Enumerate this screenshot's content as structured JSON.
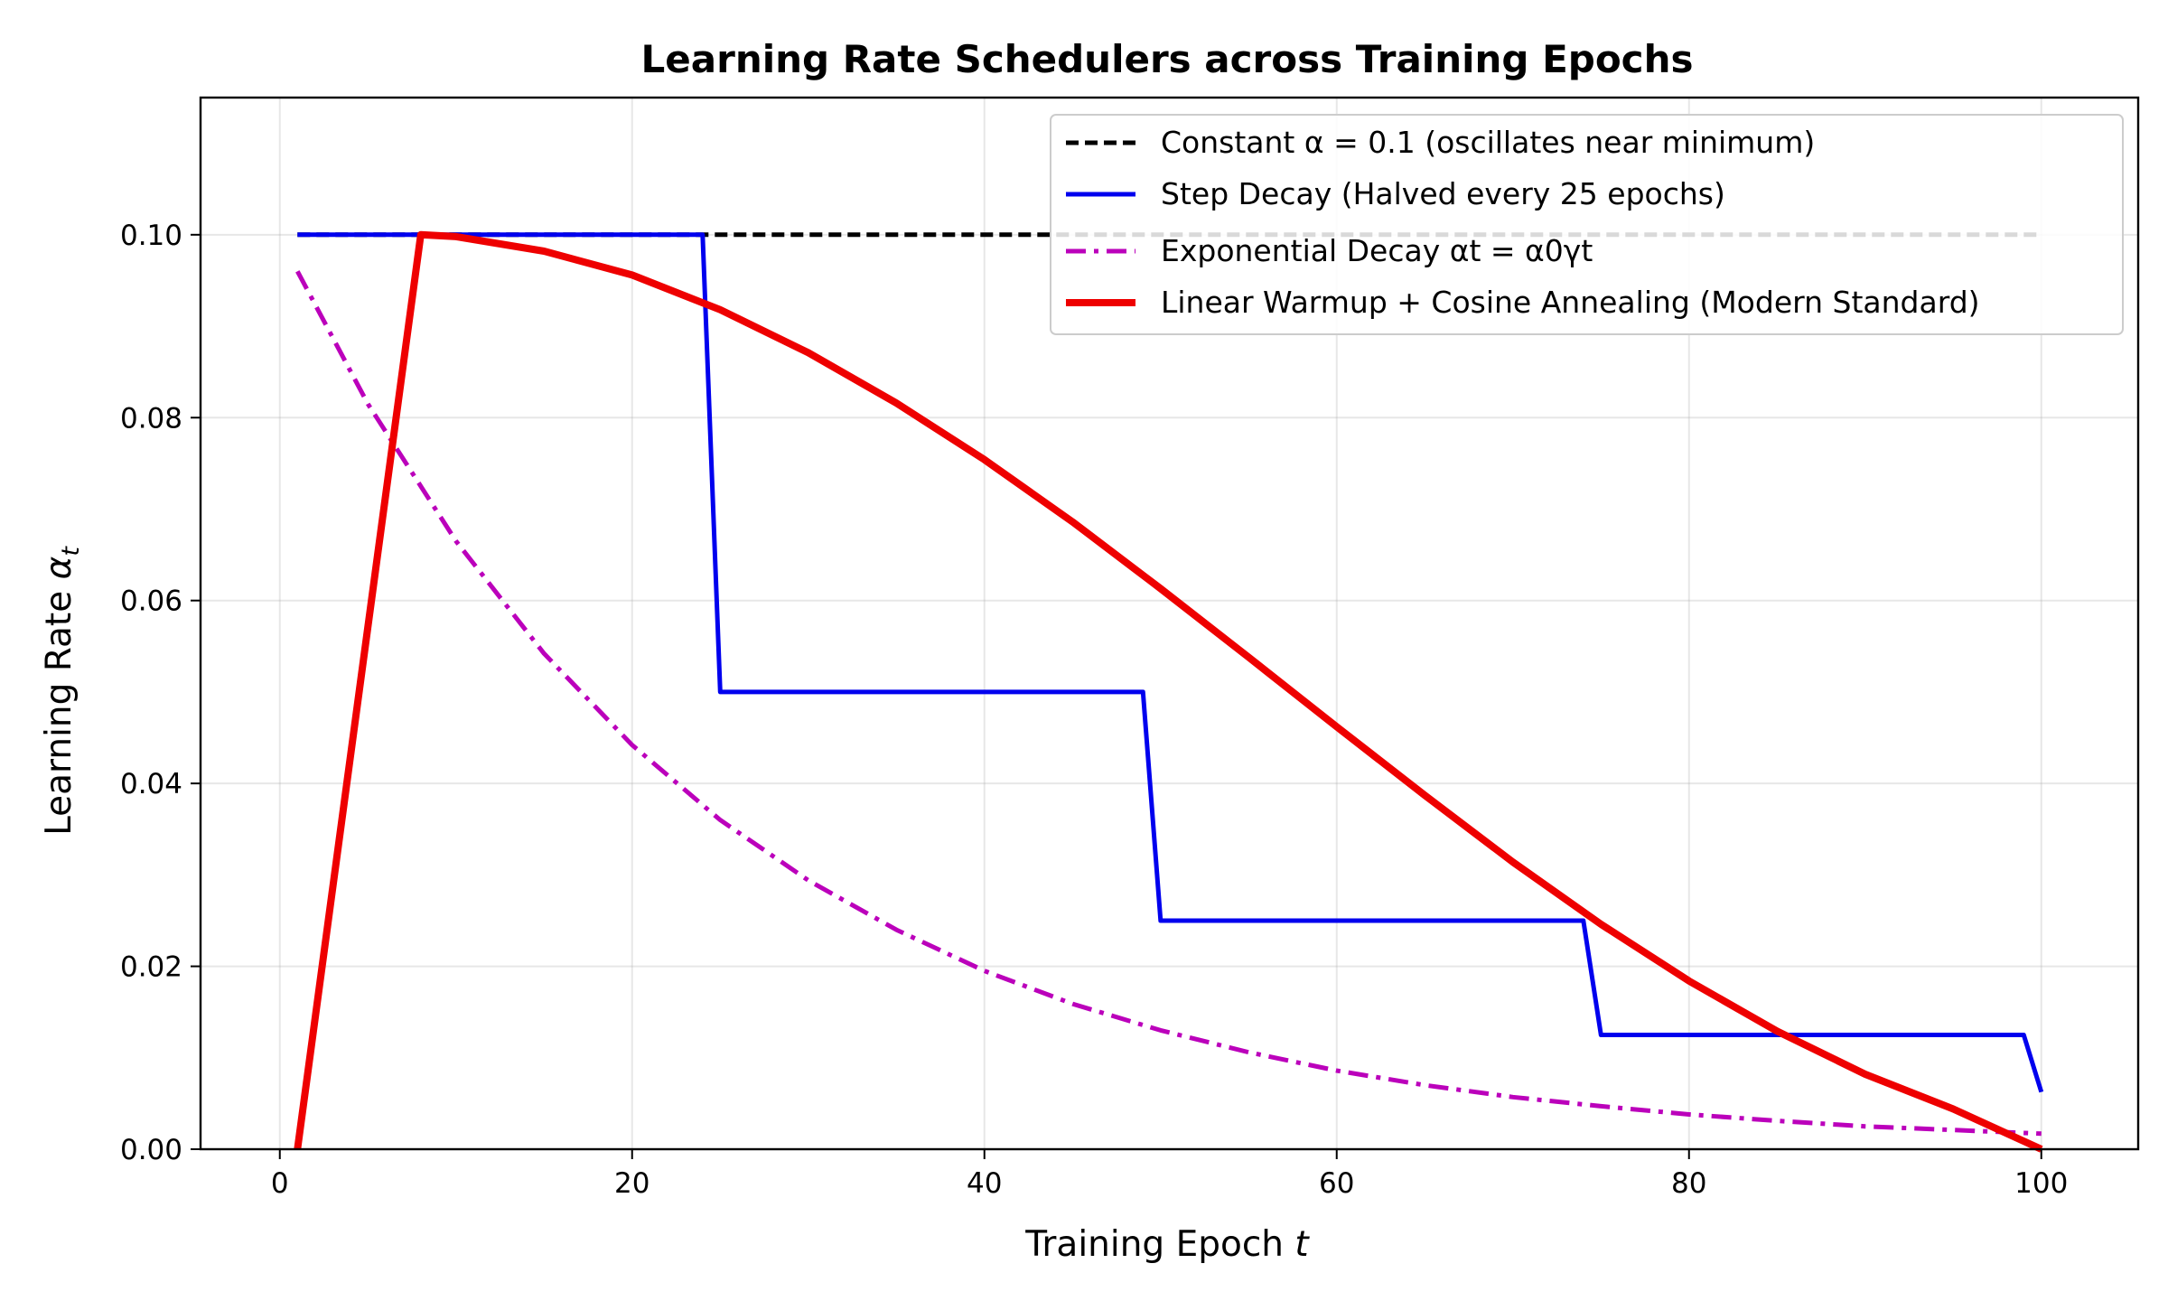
{
  "chart_data": {
    "type": "line",
    "title": "Learning Rate Schedulers across Training Epochs",
    "xlabel": "Training Epoch t",
    "ylabel": "Learning Rate αt",
    "xlim": [
      -4.5,
      105.5
    ],
    "ylim": [
      0.0,
      0.115
    ],
    "x_ticks": [
      0,
      20,
      40,
      60,
      80,
      100
    ],
    "x_tick_labels": [
      "0",
      "20",
      "40",
      "60",
      "80",
      "100"
    ],
    "y_ticks": [
      0.0,
      0.02,
      0.04,
      0.06,
      0.08,
      0.1
    ],
    "y_tick_labels": [
      "0.00",
      "0.02",
      "0.04",
      "0.06",
      "0.08",
      "0.10"
    ],
    "grid": true,
    "legend_position": "top-right",
    "series": [
      {
        "name": "Constant α = 0.1 (oscillates near minimum)",
        "color": "#000000",
        "style": "dashed",
        "x": [
          1,
          100
        ],
        "y": [
          0.1,
          0.1
        ]
      },
      {
        "name": "Step Decay (Halved every 25 epochs)",
        "color": "#0000ee",
        "style": "solid",
        "x": [
          1,
          24,
          25,
          49,
          50,
          74,
          75,
          99,
          100
        ],
        "y": [
          0.1,
          0.1,
          0.05,
          0.05,
          0.025,
          0.025,
          0.0125,
          0.0125,
          0.00625
        ]
      },
      {
        "name": "Exponential Decay αt = α0γt",
        "color": "#bb00bb",
        "style": "dashdot",
        "x": [
          1,
          5,
          10,
          15,
          20,
          25,
          30,
          35,
          40,
          45,
          50,
          55,
          60,
          65,
          70,
          75,
          80,
          85,
          90,
          95,
          100
        ],
        "y": [
          0.096,
          0.0815,
          0.0665,
          0.0542,
          0.0442,
          0.036,
          0.0294,
          0.024,
          0.0195,
          0.0159,
          0.013,
          0.0106,
          0.0086,
          0.007,
          0.0057,
          0.0047,
          0.0038,
          0.0031,
          0.0025,
          0.0021,
          0.0017
        ]
      },
      {
        "name": "Linear Warmup + Cosine Annealing (Modern Standard)",
        "color": "#ee0000",
        "style": "solid",
        "x": [
          1,
          8,
          10,
          15,
          20,
          25,
          30,
          35,
          40,
          45,
          50,
          55,
          60,
          65,
          70,
          75,
          80,
          85,
          90,
          95,
          100
        ],
        "y": [
          0.0,
          0.1,
          0.0998,
          0.0982,
          0.0956,
          0.0918,
          0.0871,
          0.0816,
          0.0754,
          0.0686,
          0.0613,
          0.0538,
          0.0462,
          0.0387,
          0.0314,
          0.0246,
          0.0184,
          0.0129,
          0.0082,
          0.0044,
          0.0
        ]
      }
    ]
  }
}
